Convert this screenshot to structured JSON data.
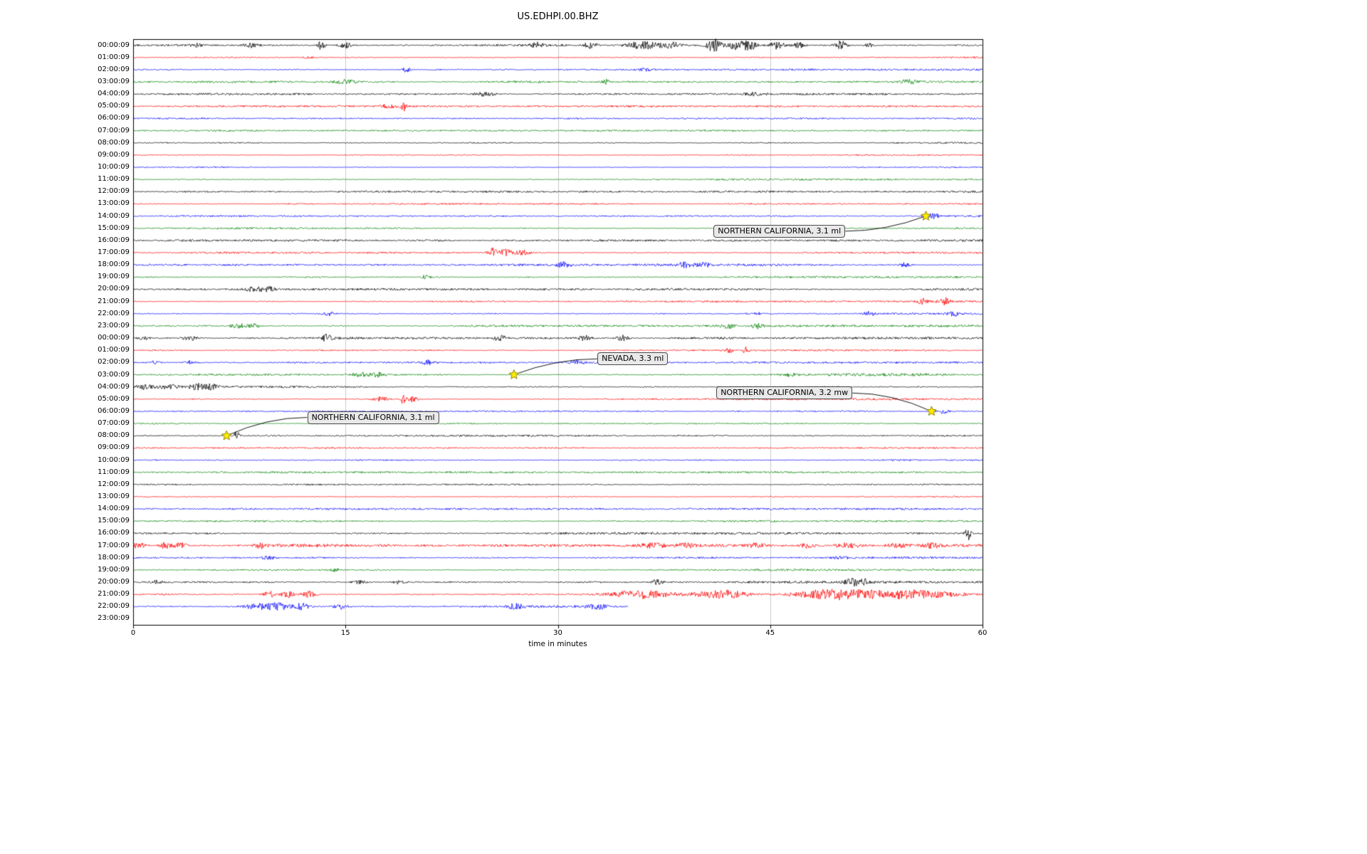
{
  "chart_data": {
    "type": "line",
    "subtype": "seismogram_helicorder_dayplot",
    "title": "US.EDHPI.00.BHZ",
    "xlabel": "time in minutes",
    "xlim": [
      0,
      60
    ],
    "x_ticks": [
      0,
      15,
      30,
      45,
      60
    ],
    "grid": true,
    "grid_color": "#c9c9c9",
    "background": "#ffffff",
    "trace_colors": [
      "#000000",
      "#ff0000",
      "#0000ff",
      "#008000"
    ],
    "row_duration_minutes": 60,
    "rows": [
      {
        "label": "00:00:09",
        "noise": 1.3,
        "bursts": [
          {
            "m": 4.5,
            "w": 0.3,
            "a": 2.5
          },
          {
            "m": 8.3,
            "w": 0.4,
            "a": 3
          },
          {
            "m": 13.3,
            "w": 0.15,
            "a": 9
          },
          {
            "m": 15.0,
            "w": 0.3,
            "a": 4
          },
          {
            "m": 28.5,
            "w": 0.3,
            "a": 3.5
          },
          {
            "m": 32.3,
            "w": 0.3,
            "a": 6
          },
          {
            "m": 36,
            "w": 0.8,
            "a": 5
          },
          {
            "m": 38,
            "w": 0.5,
            "a": 4
          },
          {
            "m": 41,
            "w": 0.4,
            "a": 9
          },
          {
            "m": 42.5,
            "w": 0.3,
            "a": 6
          },
          {
            "m": 43.5,
            "w": 0.4,
            "a": 7
          },
          {
            "m": 45.5,
            "w": 0.4,
            "a": 5
          },
          {
            "m": 47,
            "w": 0.3,
            "a": 4
          },
          {
            "m": 50,
            "w": 0.3,
            "a": 6.5
          },
          {
            "m": 52,
            "w": 0.2,
            "a": 3
          }
        ]
      },
      {
        "label": "01:00:09",
        "noise": 0.8,
        "bursts": [
          {
            "m": 12.3,
            "w": 0.3,
            "a": 1.5
          }
        ]
      },
      {
        "label": "02:00:09",
        "noise": 0.85,
        "bursts": [
          {
            "m": 19.3,
            "w": 0.2,
            "a": 3.5
          },
          {
            "m": 36.2,
            "w": 0.3,
            "a": 2
          }
        ]
      },
      {
        "label": "03:00:09",
        "noise": 0.9,
        "bursts": [
          {
            "m": 15.0,
            "w": 0.5,
            "a": 3
          },
          {
            "m": 33.4,
            "w": 0.15,
            "a": 3.5
          },
          {
            "m": 54.8,
            "w": 0.5,
            "a": 2.5
          }
        ]
      },
      {
        "label": "04:00:09",
        "noise": 0.9,
        "bursts": [
          {
            "m": 24.9,
            "w": 0.5,
            "a": 3
          },
          {
            "m": 44,
            "w": 0.5,
            "a": 2
          }
        ]
      },
      {
        "label": "05:00:09",
        "noise": 0.8,
        "bursts": [
          {
            "m": 18,
            "w": 0.5,
            "a": 2
          },
          {
            "m": 19.1,
            "w": 0.12,
            "a": 8
          }
        ]
      },
      {
        "label": "06:00:09",
        "noise": 0.8,
        "bursts": []
      },
      {
        "label": "07:00:09",
        "noise": 0.8,
        "bursts": []
      },
      {
        "label": "08:00:09",
        "noise": 0.75,
        "bursts": []
      },
      {
        "label": "09:00:09",
        "noise": 0.7,
        "bursts": []
      },
      {
        "label": "10:00:09",
        "noise": 0.75,
        "bursts": []
      },
      {
        "label": "11:00:09",
        "noise": 0.8,
        "bursts": []
      },
      {
        "label": "12:00:09",
        "noise": 0.85,
        "bursts": []
      },
      {
        "label": "13:00:09",
        "noise": 0.7,
        "bursts": []
      },
      {
        "label": "14:00:09",
        "noise": 0.8,
        "bursts": [
          {
            "m": 56.5,
            "w": 0.3,
            "a": 3.5
          }
        ]
      },
      {
        "label": "15:00:09",
        "noise": 0.8,
        "bursts": []
      },
      {
        "label": "16:00:09",
        "noise": 0.95,
        "bursts": []
      },
      {
        "label": "17:00:09",
        "noise": 0.9,
        "bursts": [
          {
            "m": 25.4,
            "w": 0.25,
            "a": 7
          },
          {
            "m": 26.3,
            "w": 0.3,
            "a": 5
          },
          {
            "m": 27.5,
            "w": 0.4,
            "a": 3.5
          }
        ]
      },
      {
        "label": "18:00:09",
        "noise": 1.0,
        "bursts": [
          {
            "m": 30.4,
            "w": 0.3,
            "a": 3.5
          },
          {
            "m": 39,
            "w": 0.4,
            "a": 3
          },
          {
            "m": 40.3,
            "w": 0.3,
            "a": 3
          },
          {
            "m": 54.5,
            "w": 0.3,
            "a": 3
          }
        ]
      },
      {
        "label": "19:00:09",
        "noise": 0.9,
        "bursts": [
          {
            "m": 20.7,
            "w": 0.25,
            "a": 3
          }
        ]
      },
      {
        "label": "20:00:09",
        "noise": 0.95,
        "bursts": [
          {
            "m": 8.7,
            "w": 0.5,
            "a": 4
          },
          {
            "m": 9.6,
            "w": 0.3,
            "a": 3
          }
        ]
      },
      {
        "label": "21:00:09",
        "noise": 0.8,
        "bursts": [
          {
            "m": 55.8,
            "w": 0.25,
            "a": 4
          },
          {
            "m": 57.3,
            "w": 0.3,
            "a": 5
          }
        ]
      },
      {
        "label": "22:00:09",
        "noise": 0.9,
        "bursts": [
          {
            "m": 13.8,
            "w": 0.3,
            "a": 3.5
          },
          {
            "m": 44,
            "w": 0.4,
            "a": 2
          },
          {
            "m": 52,
            "w": 0.3,
            "a": 3
          },
          {
            "m": 58,
            "w": 0.3,
            "a": 2.5
          }
        ]
      },
      {
        "label": "23:00:09",
        "noise": 0.95,
        "bursts": [
          {
            "m": 7.5,
            "w": 0.5,
            "a": 3
          },
          {
            "m": 8.6,
            "w": 0.3,
            "a": 2.5
          },
          {
            "m": 42,
            "w": 0.3,
            "a": 3.5
          },
          {
            "m": 44.1,
            "w": 0.3,
            "a": 4
          }
        ]
      },
      {
        "label": "00:00:09",
        "noise": 1.0,
        "bursts": [
          {
            "m": 0.8,
            "w": 0.3,
            "a": 2.5
          },
          {
            "m": 4,
            "w": 0.4,
            "a": 3
          },
          {
            "m": 13.7,
            "w": 0.25,
            "a": 4.5
          },
          {
            "m": 25.9,
            "w": 0.3,
            "a": 4
          },
          {
            "m": 31.9,
            "w": 0.3,
            "a": 3.5
          },
          {
            "m": 34.6,
            "w": 0.3,
            "a": 4
          }
        ]
      },
      {
        "label": "01:00:09",
        "noise": 0.8,
        "bursts": [
          {
            "m": 42.1,
            "w": 0.15,
            "a": 4.5
          },
          {
            "m": 43.3,
            "w": 0.15,
            "a": 5
          }
        ]
      },
      {
        "label": "02:00:09",
        "noise": 0.85,
        "bursts": [
          {
            "m": 1.5,
            "w": 0.3,
            "a": 2
          },
          {
            "m": 4,
            "w": 0.3,
            "a": 2.5
          },
          {
            "m": 20.8,
            "w": 0.25,
            "a": 3.5
          },
          {
            "m": 31.3,
            "w": 0.3,
            "a": 3
          },
          {
            "m": 35.4,
            "w": 0.3,
            "a": 2.5
          }
        ]
      },
      {
        "label": "03:00:09",
        "noise": 0.9,
        "bursts": [
          {
            "m": 16.1,
            "w": 0.5,
            "a": 3
          },
          {
            "m": 17.3,
            "w": 0.4,
            "a": 3
          },
          {
            "m": 46.3,
            "w": 0.4,
            "a": 2.5
          },
          {
            "m": 50,
            "w": 3,
            "a": 0.8
          },
          {
            "m": 55,
            "w": 3,
            "a": 0.8
          }
        ]
      },
      {
        "label": "04:00:09",
        "noise": 0.95,
        "bursts": [
          {
            "m": 0.8,
            "w": 0.5,
            "a": 3.5
          },
          {
            "m": 2.5,
            "w": 0.5,
            "a": 3
          },
          {
            "m": 4.6,
            "w": 0.4,
            "a": 4
          },
          {
            "m": 5.6,
            "w": 0.3,
            "a": 3.5
          }
        ]
      },
      {
        "label": "05:00:09",
        "noise": 0.8,
        "bursts": [
          {
            "m": 17.5,
            "w": 0.4,
            "a": 3.5
          },
          {
            "m": 19.1,
            "w": 0.12,
            "a": 9
          },
          {
            "m": 19.7,
            "w": 0.3,
            "a": 4
          }
        ]
      },
      {
        "label": "06:00:09",
        "noise": 0.8,
        "bursts": [
          {
            "m": 57.2,
            "w": 0.3,
            "a": 3.5
          }
        ]
      },
      {
        "label": "07:00:09",
        "noise": 0.8,
        "bursts": []
      },
      {
        "label": "08:00:09",
        "noise": 0.8,
        "bursts": [
          {
            "m": 7.3,
            "w": 0.15,
            "a": 6
          }
        ]
      },
      {
        "label": "09:00:09",
        "noise": 0.7,
        "bursts": []
      },
      {
        "label": "10:00:09",
        "noise": 0.8,
        "bursts": []
      },
      {
        "label": "11:00:09",
        "noise": 0.8,
        "bursts": []
      },
      {
        "label": "12:00:09",
        "noise": 0.85,
        "bursts": []
      },
      {
        "label": "13:00:09",
        "noise": 0.7,
        "bursts": []
      },
      {
        "label": "14:00:09",
        "noise": 0.8,
        "bursts": []
      },
      {
        "label": "15:00:09",
        "noise": 0.8,
        "bursts": []
      },
      {
        "label": "16:00:09",
        "noise": 0.95,
        "bursts": [
          {
            "m": 59,
            "w": 0.15,
            "a": 10
          }
        ]
      },
      {
        "label": "17:00:09",
        "noise": 1.4,
        "bursts": [
          {
            "m": 0.4,
            "w": 0.3,
            "a": 4
          },
          {
            "m": 2.3,
            "w": 0.4,
            "a": 4
          },
          {
            "m": 3.4,
            "w": 0.3,
            "a": 3.5
          },
          {
            "m": 9,
            "w": 0.3,
            "a": 3.5
          },
          {
            "m": 36.8,
            "w": 0.5,
            "a": 3
          },
          {
            "m": 39,
            "w": 0.4,
            "a": 3
          },
          {
            "m": 44,
            "w": 0.5,
            "a": 3
          },
          {
            "m": 47.5,
            "w": 0.4,
            "a": 3
          },
          {
            "m": 50.5,
            "w": 0.5,
            "a": 3
          },
          {
            "m": 54,
            "w": 0.5,
            "a": 3
          },
          {
            "m": 56.5,
            "w": 0.4,
            "a": 3
          }
        ]
      },
      {
        "label": "18:00:09",
        "noise": 0.9,
        "bursts": [
          {
            "m": 9.6,
            "w": 0.4,
            "a": 2
          },
          {
            "m": 50,
            "w": 0.4,
            "a": 2
          }
        ]
      },
      {
        "label": "19:00:09",
        "noise": 0.9,
        "bursts": [
          {
            "m": 14.2,
            "w": 0.2,
            "a": 3.5
          }
        ]
      },
      {
        "label": "20:00:09",
        "noise": 1.0,
        "bursts": [
          {
            "m": 1.7,
            "w": 0.3,
            "a": 2.5
          },
          {
            "m": 16,
            "w": 0.4,
            "a": 2.5
          },
          {
            "m": 18.7,
            "w": 0.3,
            "a": 2.5
          },
          {
            "m": 37,
            "w": 0.3,
            "a": 3.5
          },
          {
            "m": 50.8,
            "w": 0.4,
            "a": 4.5
          },
          {
            "m": 51.6,
            "w": 0.3,
            "a": 3.5
          }
        ]
      },
      {
        "label": "21:00:09",
        "noise": 1.0,
        "bursts": [
          {
            "m": 9.6,
            "w": 0.3,
            "a": 4.5
          },
          {
            "m": 10.9,
            "w": 0.3,
            "a": 5.5
          },
          {
            "m": 12.4,
            "w": 0.35,
            "a": 5
          },
          {
            "m": 36,
            "w": 1.5,
            "a": 5.5
          },
          {
            "m": 41.5,
            "w": 1.3,
            "a": 6
          },
          {
            "m": 49.5,
            "w": 2.0,
            "a": 6.5
          },
          {
            "m": 55,
            "w": 2.3,
            "a": 6
          }
        ]
      },
      {
        "label": "22:00:09",
        "noise": 1.1,
        "end": 35,
        "bursts": [
          {
            "m": 9,
            "w": 0.8,
            "a": 4.5
          },
          {
            "m": 10.5,
            "w": 0.5,
            "a": 4
          },
          {
            "m": 11.9,
            "w": 0.4,
            "a": 4.5
          },
          {
            "m": 14.6,
            "w": 0.4,
            "a": 3.5
          },
          {
            "m": 27,
            "w": 0.4,
            "a": 3.5
          },
          {
            "m": 32.8,
            "w": 0.4,
            "a": 3.5
          }
        ]
      },
      {
        "label": "23:00:09",
        "noise": 0,
        "end": 0,
        "bursts": []
      }
    ],
    "events": [
      {
        "label": "NORTHERN CALIFORNIA, 3.1 ml",
        "row": 14,
        "minute": 56.0,
        "label_minute": 41.0,
        "label_row": 15.74
      },
      {
        "label": "NEVADA, 3.3 ml",
        "row": 27,
        "minute": 26.9,
        "label_minute": 32.8,
        "label_row": 26.2
      },
      {
        "label": "NORTHERN CALIFORNIA, 3.2 mw",
        "row": 30,
        "minute": 56.4,
        "label_minute": 41.2,
        "label_row": 29.0
      },
      {
        "label": "NORTHERN CALIFORNIA, 3.1 ml",
        "row": 32,
        "minute": 6.6,
        "label_minute": 12.3,
        "label_row": 31.0
      }
    ],
    "event_marker": {
      "shape": "star",
      "fill": "#ffec00",
      "edge": "#8f8000"
    }
  }
}
